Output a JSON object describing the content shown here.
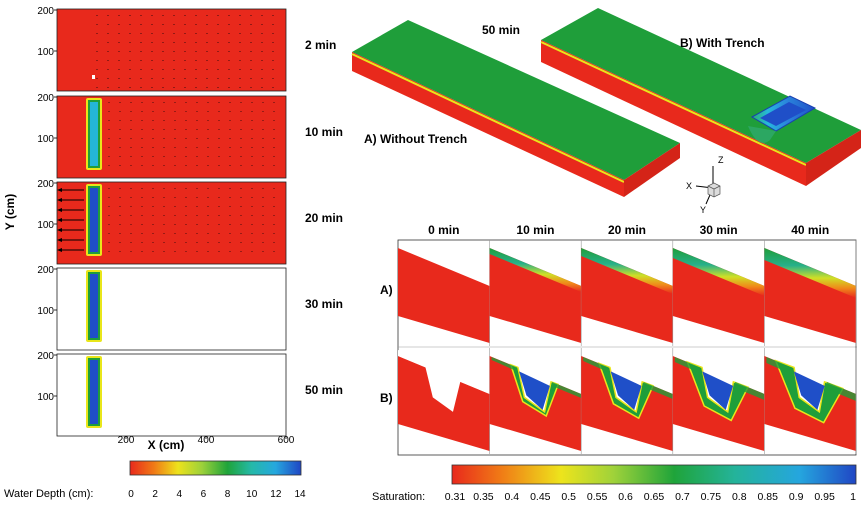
{
  "left": {
    "time_labels": [
      "2 min",
      "10 min",
      "20 min",
      "30 min",
      "50 min"
    ],
    "y_ticks": [
      "200",
      "100"
    ],
    "x_ticks": [
      "200",
      "400",
      "600"
    ],
    "xlabel": "X (cm)",
    "ylabel": "Y (cm)",
    "legend": {
      "title": "Water Depth (cm):",
      "ticks": [
        "0",
        "2",
        "4",
        "6",
        "8",
        "10",
        "12",
        "14"
      ]
    }
  },
  "top_right": {
    "time_label": "50 min",
    "label_a": "A) Without Trench",
    "label_b": "B) With Trench",
    "axes": {
      "z": "Z",
      "x": "X",
      "y": "Y"
    }
  },
  "grid": {
    "columns": [
      "0 min",
      "10 min",
      "20 min",
      "30 min",
      "40 min"
    ],
    "rows": [
      "A)",
      "B)"
    ]
  },
  "saturation_legend": {
    "title": "Saturation:",
    "ticks": [
      "0.31",
      "0.35",
      "0.4",
      "0.45",
      "0.5",
      "0.55",
      "0.6",
      "0.65",
      "0.7",
      "0.75",
      "0.8",
      "0.85",
      "0.9",
      "0.95",
      "1"
    ]
  },
  "colors": {
    "red": "#e8291c",
    "green": "#1f9e3a",
    "blue": "#1f4fc8",
    "yellow": "#e9e61a",
    "cyan": "#24b6d8"
  }
}
